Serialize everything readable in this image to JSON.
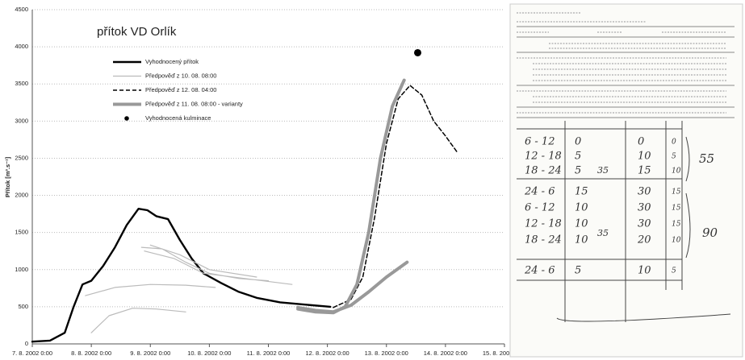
{
  "chart_data": {
    "type": "line",
    "title": "přítok VD Orlík",
    "y_label": "Přítok [m³.s⁻¹]",
    "xlim": [
      0,
      8
    ],
    "xticks": [
      {
        "value": 0,
        "label": "7. 8. 2002 0:00"
      },
      {
        "value": 1,
        "label": "8. 8. 2002 0:00"
      },
      {
        "value": 2,
        "label": "9. 8. 2002 0:00"
      },
      {
        "value": 3,
        "label": "10. 8. 2002 0:00"
      },
      {
        "value": 4,
        "label": "11. 8. 2002 0:00"
      },
      {
        "value": 5,
        "label": "12. 8. 2002 0:00"
      },
      {
        "value": 6,
        "label": "13. 8. 2002 0:00"
      },
      {
        "value": 7,
        "label": "14. 8. 2002 0:00"
      },
      {
        "value": 8,
        "label": "15. 8. 2002 0:00"
      }
    ],
    "ylim": [
      0,
      4500
    ],
    "yticks": [
      0,
      500,
      1000,
      1500,
      2000,
      2500,
      3000,
      3500,
      4000,
      4500
    ],
    "grid": true,
    "series": [
      {
        "name": "Vyhodnocený přítok",
        "color": "#000000",
        "line_style": "solid",
        "line_width": 2.4,
        "x": [
          0,
          0.3,
          0.55,
          0.7,
          0.85,
          1.0,
          1.2,
          1.4,
          1.6,
          1.8,
          1.95,
          2.1,
          2.3,
          2.5,
          2.7,
          2.9,
          3.2,
          3.5,
          3.8,
          4.2,
          4.6,
          5.05
        ],
        "values": [
          30,
          45,
          150,
          500,
          800,
          850,
          1050,
          1300,
          1600,
          1820,
          1800,
          1720,
          1680,
          1400,
          1150,
          950,
          820,
          700,
          620,
          560,
          530,
          500
        ]
      },
      {
        "name": "Předpověď z 10. 08. 08:00",
        "color": "#bbbbbb",
        "line_style": "solid",
        "line_width": 1.2,
        "x": [
          1.0,
          1.3,
          1.7,
          2.1,
          2.6,
          null,
          0.9,
          1.4,
          2.0,
          2.6,
          3.1,
          null,
          1.85,
          2.2,
          2.6,
          3.0,
          3.5,
          4.0,
          null,
          1.9,
          2.4,
          2.9,
          3.6,
          4.4,
          null,
          2.0,
          2.5,
          3.0,
          3.8
        ],
        "values": [
          150,
          380,
          480,
          470,
          430,
          null,
          650,
          760,
          800,
          790,
          760,
          null,
          1300,
          1280,
          1100,
          950,
          880,
          850,
          null,
          1250,
          1150,
          950,
          880,
          800,
          null,
          1330,
          1200,
          1000,
          900
        ]
      },
      {
        "name": "Předpověď z 12. 08. 04:00",
        "color": "#000000",
        "line_style": "dashed",
        "line_width": 1.5,
        "x": [
          5.1,
          5.4,
          5.6,
          5.8,
          6.0,
          6.2,
          6.4,
          6.6,
          6.8,
          7.0,
          7.2
        ],
        "values": [
          490,
          600,
          900,
          1700,
          2700,
          3300,
          3480,
          3350,
          3000,
          2800,
          2580
        ]
      },
      {
        "name": "Předpověď z 11. 08. 08:00 - varianty",
        "color": "#999999",
        "line_style": "solid",
        "line_width": 4,
        "x": [
          4.5,
          4.8,
          5.1,
          5.3,
          5.5,
          5.7,
          5.9,
          6.1,
          6.3,
          null,
          4.5,
          4.8,
          5.1,
          5.4,
          5.7,
          6.0,
          6.35
        ],
        "values": [
          470,
          430,
          420,
          500,
          800,
          1500,
          2500,
          3200,
          3550,
          null,
          490,
          450,
          430,
          520,
          700,
          900,
          1100
        ]
      },
      {
        "name": "Vyhodnocená kulminace",
        "color": "#000000",
        "line_style": "marker",
        "line_width": 0,
        "x": [
          6.53
        ],
        "values": [
          3920
        ]
      }
    ]
  },
  "scan": {
    "rows": [
      [
        "6 - 12",
        "0",
        "0",
        "0"
      ],
      [
        "12 - 18",
        "5",
        "10",
        "5"
      ],
      [
        "18 - 24",
        "5",
        "15",
        "10"
      ],
      [
        "24 - 6",
        "15",
        "30",
        "15"
      ],
      [
        "6 - 12",
        "10",
        "30",
        "15"
      ],
      [
        "12 - 18",
        "10",
        "30",
        "15"
      ],
      [
        "18 - 24",
        "10",
        "20",
        "10"
      ],
      [
        "24 - 6",
        "5",
        "10",
        "5"
      ]
    ],
    "subtotals": [
      "35",
      "35"
    ],
    "totals": [
      "55",
      "90"
    ]
  }
}
